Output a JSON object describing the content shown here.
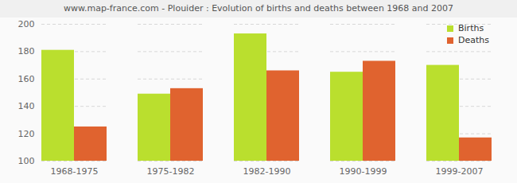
{
  "chart_data": {
    "type": "bar",
    "title": "www.map-france.com - Plouider : Evolution of births and deaths between 1968 and 2007",
    "categories": [
      "1968-1975",
      "1975-1982",
      "1982-1990",
      "1990-1999",
      "1999-2007"
    ],
    "series": [
      {
        "name": "Births",
        "color": "#badf2e",
        "values": [
          181,
          149,
          193,
          165,
          170
        ]
      },
      {
        "name": "Deaths",
        "color": "#e0632f",
        "values": [
          125,
          153,
          166,
          173,
          117
        ]
      }
    ],
    "ylim": [
      100,
      200
    ],
    "yticks": [
      100,
      120,
      140,
      160,
      180,
      200
    ],
    "grid": true,
    "legend": "top-right"
  }
}
